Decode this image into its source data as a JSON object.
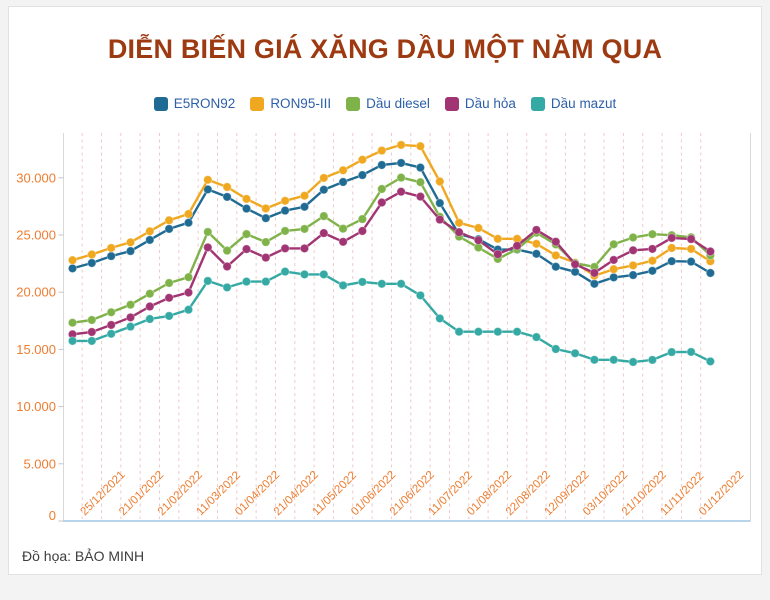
{
  "title": "DIỄN BIẾN GIÁ XĂNG DẦU MỘT NĂM QUA",
  "footer": {
    "credit": "Đồ họa: BẢO MINH"
  },
  "colors": {
    "title": "#9d3a11",
    "legend_text": "#2d5fa8",
    "axis_label": "#ed7d31",
    "grid_line": "#eecaca",
    "axis_line": "#d9d9d9",
    "x_axis_line": "#b9d5ec",
    "card_border": "#e2e2e2",
    "page_background": "#f3f3f3"
  },
  "chart_data": {
    "type": "line",
    "title": "DIỄN BIẾN GIÁ XĂNG DẦU MỘT NĂM QUA",
    "xlabel": "",
    "ylabel": "",
    "grid": "vertical-dashed",
    "legend_position": "top",
    "n_points": 34,
    "ylim": [
      0,
      33500
    ],
    "y_tick_values": [
      0,
      5000,
      10000,
      15000,
      20000,
      25000,
      30000
    ],
    "y_tick_labels": [
      "0",
      "5.000",
      "10.000",
      "15.000",
      "20.000",
      "25.000",
      "30.000"
    ],
    "x_tick_indices": [
      1,
      3,
      5,
      7,
      9,
      11,
      13,
      15,
      17,
      19,
      21,
      23,
      25,
      27,
      29,
      31,
      33
    ],
    "x_tick_labels": [
      "25/12/2021",
      "21/01/2022",
      "21/02/2022",
      "11/03/2022",
      "01/04/2022",
      "21/04/2022",
      "11/05/2022",
      "01/06/2022",
      "21/06/2022",
      "11/07/2022",
      "01/08/2022",
      "22/08/2022",
      "12/09/2022",
      "03/10/2022",
      "21/10/2022",
      "11/11/2022",
      "01/12/2022"
    ],
    "series": [
      {
        "name": "E5RON92",
        "color": "#1f6b93",
        "values": [
          22082,
          22550,
          23159,
          23595,
          24571,
          25532,
          26077,
          28985,
          28330,
          27309,
          26470,
          27134,
          27468,
          28959,
          29633,
          30235,
          31117,
          31302,
          30891,
          27788,
          25073,
          24629,
          23725,
          23725,
          23359,
          22231,
          21781,
          20732,
          21292,
          21496,
          21873,
          22711,
          22677,
          21679
        ]
      },
      {
        "name": "RON95-III",
        "color": "#efa820",
        "values": [
          22801,
          23295,
          23876,
          24360,
          25322,
          26287,
          26834,
          29824,
          29192,
          28153,
          27317,
          27992,
          28434,
          29988,
          30657,
          31578,
          32375,
          32873,
          32763,
          29675,
          26070,
          25608,
          24669,
          24669,
          24230,
          23215,
          22584,
          21443,
          22007,
          22344,
          22756,
          23867,
          23787,
          22704
        ]
      },
      {
        "name": "Dầu diesel",
        "color": "#7fb34a",
        "values": [
          17334,
          17570,
          18239,
          18903,
          19865,
          20801,
          21310,
          25268,
          23633,
          25080,
          24380,
          25359,
          25530,
          26650,
          25553,
          26394,
          29020,
          30019,
          29615,
          26593,
          24858,
          23908,
          22908,
          23759,
          25188,
          24180,
          22536,
          22208,
          24187,
          24783,
          25070,
          24983,
          24801,
          23213
        ]
      },
      {
        "name": "Dầu hỏa",
        "color": "#a13472",
        "values": [
          16322,
          16518,
          17138,
          17793,
          18751,
          19509,
          19978,
          23918,
          22245,
          23764,
          23027,
          23828,
          23828,
          25168,
          24405,
          25346,
          27839,
          28785,
          28353,
          26345,
          25246,
          24533,
          23320,
          24056,
          25445,
          24418,
          22440,
          21688,
          22820,
          23663,
          23783,
          24747,
          24640,
          23562
        ]
      },
      {
        "name": "Dầu mazut",
        "color": "#35a9a4",
        "values": [
          15745,
          15745,
          16362,
          16993,
          17659,
          17932,
          18468,
          20987,
          20423,
          20929,
          20929,
          21800,
          21560,
          21560,
          20598,
          20901,
          20735,
          20735,
          19722,
          17712,
          16548,
          16548,
          16548,
          16548,
          16079,
          15039,
          14656,
          14094,
          14094,
          13899,
          14082,
          14760,
          14785,
          13953
        ]
      }
    ]
  }
}
